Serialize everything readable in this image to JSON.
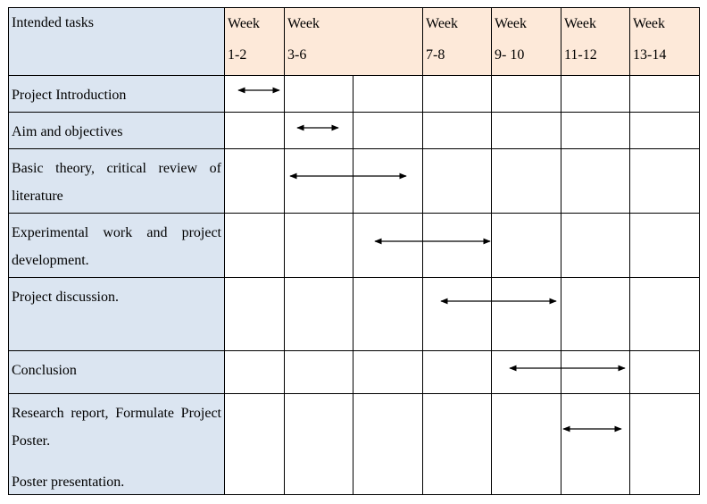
{
  "header": {
    "task_column": "Intended tasks",
    "weeks": [
      {
        "label": "Week",
        "range": "1-2"
      },
      {
        "label": "Week",
        "range": "3-6"
      },
      {
        "label": "Week",
        "range": "7-8"
      },
      {
        "label": "Week",
        "range": "9- 10"
      },
      {
        "label": "Week",
        "range": "11-12"
      },
      {
        "label": "Week",
        "range": "13-14"
      }
    ]
  },
  "rows": [
    {
      "task": "Project Introduction"
    },
    {
      "task": "Aim and objectives"
    },
    {
      "task": "Basic theory, critical review of literature"
    },
    {
      "task": "Experimental work and project development."
    },
    {
      "task": "Project discussion."
    },
    {
      "task": "Conclusion"
    },
    {
      "task": "Research report, Formulate Project Poster.",
      "task2": "Poster presentation."
    }
  ]
}
